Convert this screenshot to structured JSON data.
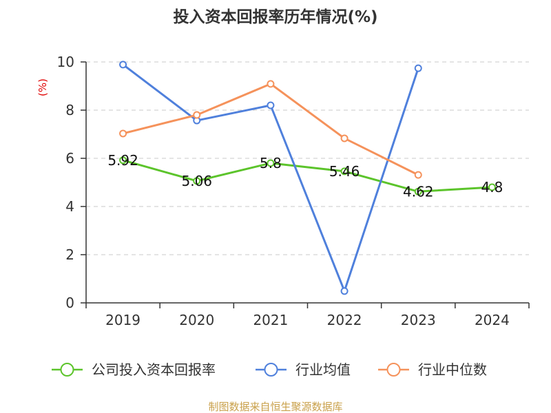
{
  "footer": "制图数据来自恒生聚源数据库",
  "chart_data": {
    "type": "line",
    "title": "投入资本回报率历年情况(%)",
    "xlabel": "",
    "ylabel": "(%)",
    "categories": [
      "2019",
      "2020",
      "2021",
      "2022",
      "2023",
      "2024"
    ],
    "ylim": [
      0,
      10
    ],
    "yticks": [
      0,
      2,
      4,
      6,
      8,
      10
    ],
    "grid": true,
    "legend": "bottom",
    "series": [
      {
        "name": "公司投入资本回报率",
        "color": "#5cc42b",
        "show_data_labels": true,
        "values": [
          5.92,
          5.06,
          5.8,
          5.46,
          4.62,
          4.8
        ]
      },
      {
        "name": "行业均值",
        "color": "#4f80dc",
        "show_data_labels": false,
        "values": [
          9.89,
          7.57,
          8.2,
          0.49,
          9.74,
          null
        ]
      },
      {
        "name": "行业中位数",
        "color": "#f5925b",
        "show_data_labels": false,
        "values": [
          7.03,
          7.8,
          9.09,
          6.83,
          5.31,
          null
        ]
      }
    ]
  }
}
